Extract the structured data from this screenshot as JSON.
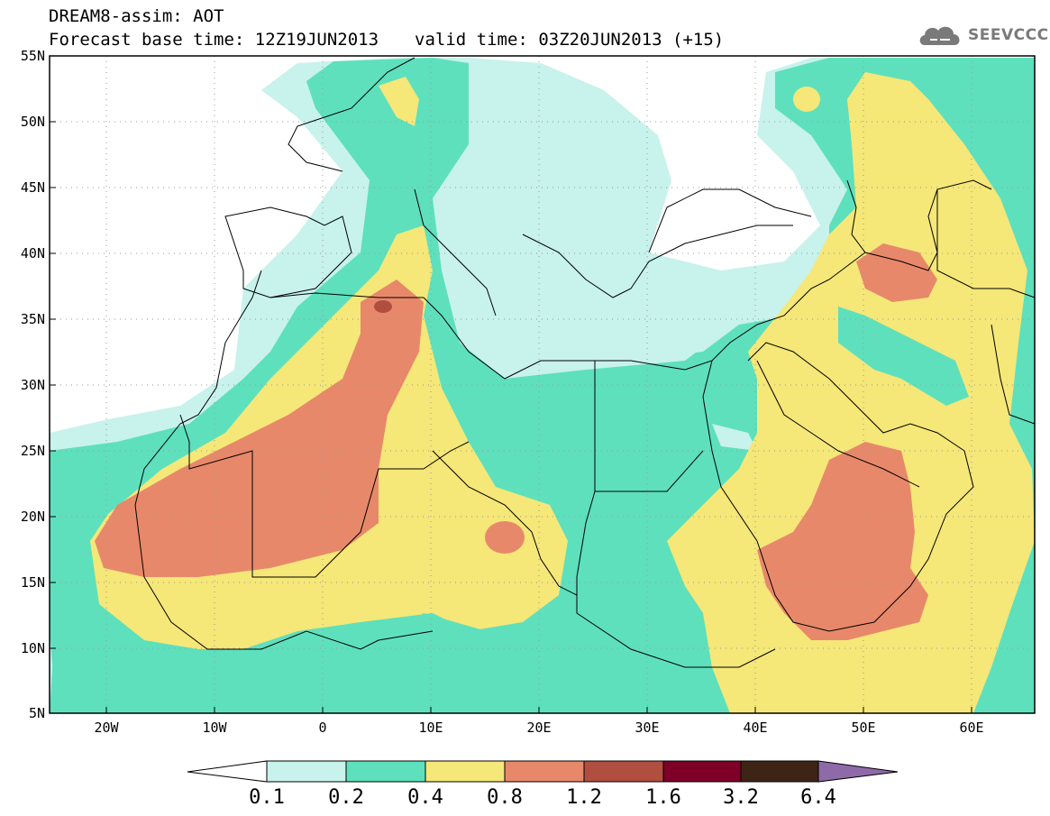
{
  "header": {
    "title": "DREAM8-assim: AOT",
    "base_time": "Forecast base time: 12Z19JUN2013",
    "valid_time": "valid time: 03Z20JUN2013 (+15)"
  },
  "logo": {
    "text": "SEEVCCC",
    "icon": "cloud-icon"
  },
  "map": {
    "lat_labels": [
      "55N",
      "50N",
      "45N",
      "40N",
      "35N",
      "30N",
      "25N",
      "20N",
      "15N",
      "10N",
      "5N"
    ],
    "lon_labels": [
      "20W",
      "10W",
      "0",
      "10E",
      "20E",
      "30E",
      "40E",
      "50E",
      "60E"
    ],
    "lon_range": [
      -25,
      65
    ],
    "lat_range": [
      5,
      55
    ],
    "grid": "dotted"
  },
  "colorbar": {
    "labels": [
      "0.1",
      "0.2",
      "0.4",
      "0.8",
      "1.2",
      "1.6",
      "3.2",
      "6.4"
    ],
    "colors": [
      "#ffffff",
      "#c8f2ec",
      "#5ee0bd",
      "#f5e778",
      "#e8886a",
      "#b04e40",
      "#7e0028",
      "#3d2416",
      "#8f6aa8"
    ]
  }
}
